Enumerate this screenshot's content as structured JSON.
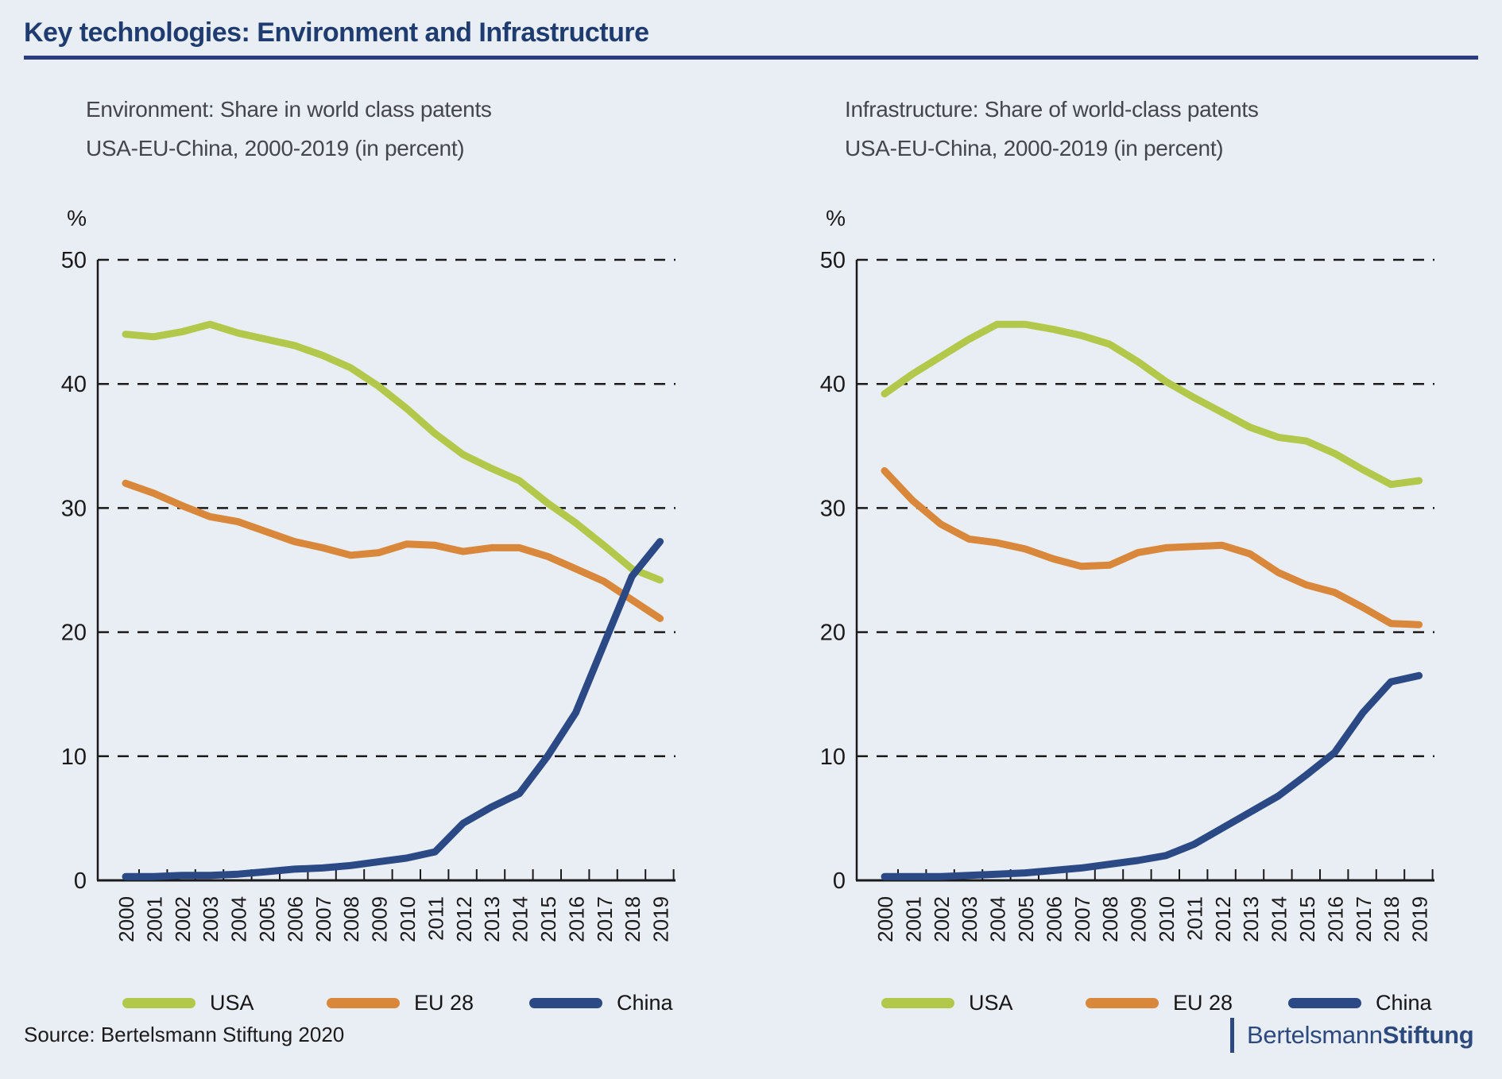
{
  "header": {
    "title": "Key technologies: Environment and Infrastructure"
  },
  "footer": {
    "source": "Source: Bertelsmann Stiftung 2020",
    "brand_regular": "Bertelsmann",
    "brand_bold": "Stiftung"
  },
  "colors": {
    "background": "#e9edf4",
    "title": "#1e3c6f",
    "rule": "#2c3b82",
    "subtitle": "#43464c",
    "axis": "#1a1a1a",
    "usa": "#b2c84b",
    "eu28": "#d8873b",
    "china": "#2b4a85",
    "brand": "#2d4a7e"
  },
  "chart_data": [
    {
      "type": "line",
      "title_line1": "Environment: Share in world class patents",
      "title_line2": "USA-EU-China, 2000-2019 (in percent)",
      "unit_label": "%",
      "x": [
        "2000",
        "2001",
        "2002",
        "2003",
        "2004",
        "2005",
        "2006",
        "2007",
        "2008",
        "2009",
        "2010",
        "2011",
        "2012",
        "2013",
        "2014",
        "2015",
        "2016",
        "2017",
        "2018",
        "2019"
      ],
      "ylim": [
        0,
        50
      ],
      "yticks": [
        0,
        10,
        20,
        30,
        40,
        50
      ],
      "grid": "horizontal-dashed",
      "legend_position": "bottom",
      "series": [
        {
          "name": "USA",
          "color": "#b2c84b",
          "values": [
            44.0,
            43.8,
            44.2,
            44.8,
            44.1,
            43.6,
            43.1,
            42.3,
            41.3,
            39.8,
            38.0,
            36.0,
            34.3,
            33.2,
            32.2,
            30.4,
            28.8,
            27.0,
            25.1,
            24.2
          ]
        },
        {
          "name": "EU 28",
          "color": "#d8873b",
          "values": [
            32.0,
            31.2,
            30.2,
            29.3,
            28.9,
            28.1,
            27.3,
            26.8,
            26.2,
            26.4,
            27.1,
            27.0,
            26.5,
            26.8,
            26.8,
            26.1,
            25.1,
            24.1,
            22.6,
            21.1
          ]
        },
        {
          "name": "China",
          "color": "#2b4a85",
          "values": [
            0.3,
            0.3,
            0.4,
            0.4,
            0.5,
            0.7,
            0.9,
            1.0,
            1.2,
            1.5,
            1.8,
            2.3,
            4.6,
            5.9,
            7.0,
            10.0,
            13.5,
            19.0,
            24.5,
            27.3
          ]
        }
      ]
    },
    {
      "type": "line",
      "title_line1": "Infrastructure: Share of world-class patents",
      "title_line2": "USA-EU-China, 2000-2019 (in percent)",
      "unit_label": "%",
      "x": [
        "2000",
        "2001",
        "2002",
        "2003",
        "2004",
        "2005",
        "2006",
        "2007",
        "2008",
        "2009",
        "2010",
        "2011",
        "2012",
        "2013",
        "2014",
        "2015",
        "2016",
        "2017",
        "2018",
        "2019"
      ],
      "ylim": [
        0,
        50
      ],
      "yticks": [
        0,
        10,
        20,
        30,
        40,
        50
      ],
      "grid": "horizontal-dashed",
      "legend_position": "bottom",
      "series": [
        {
          "name": "USA",
          "color": "#b2c84b",
          "values": [
            39.2,
            40.8,
            42.2,
            43.6,
            44.8,
            44.8,
            44.4,
            43.9,
            43.2,
            41.8,
            40.2,
            38.9,
            37.7,
            36.5,
            35.7,
            35.4,
            34.4,
            33.1,
            31.9,
            32.2
          ]
        },
        {
          "name": "EU 28",
          "color": "#d8873b",
          "values": [
            33.0,
            30.6,
            28.7,
            27.5,
            27.2,
            26.7,
            25.9,
            25.3,
            25.4,
            26.4,
            26.8,
            26.9,
            27.0,
            26.3,
            24.8,
            23.8,
            23.2,
            22.0,
            20.7,
            20.6
          ]
        },
        {
          "name": "China",
          "color": "#2b4a85",
          "values": [
            0.3,
            0.3,
            0.3,
            0.4,
            0.5,
            0.6,
            0.8,
            1.0,
            1.3,
            1.6,
            2.0,
            2.9,
            4.2,
            5.5,
            6.8,
            8.5,
            10.3,
            13.5,
            16.0,
            16.5
          ]
        }
      ]
    }
  ]
}
